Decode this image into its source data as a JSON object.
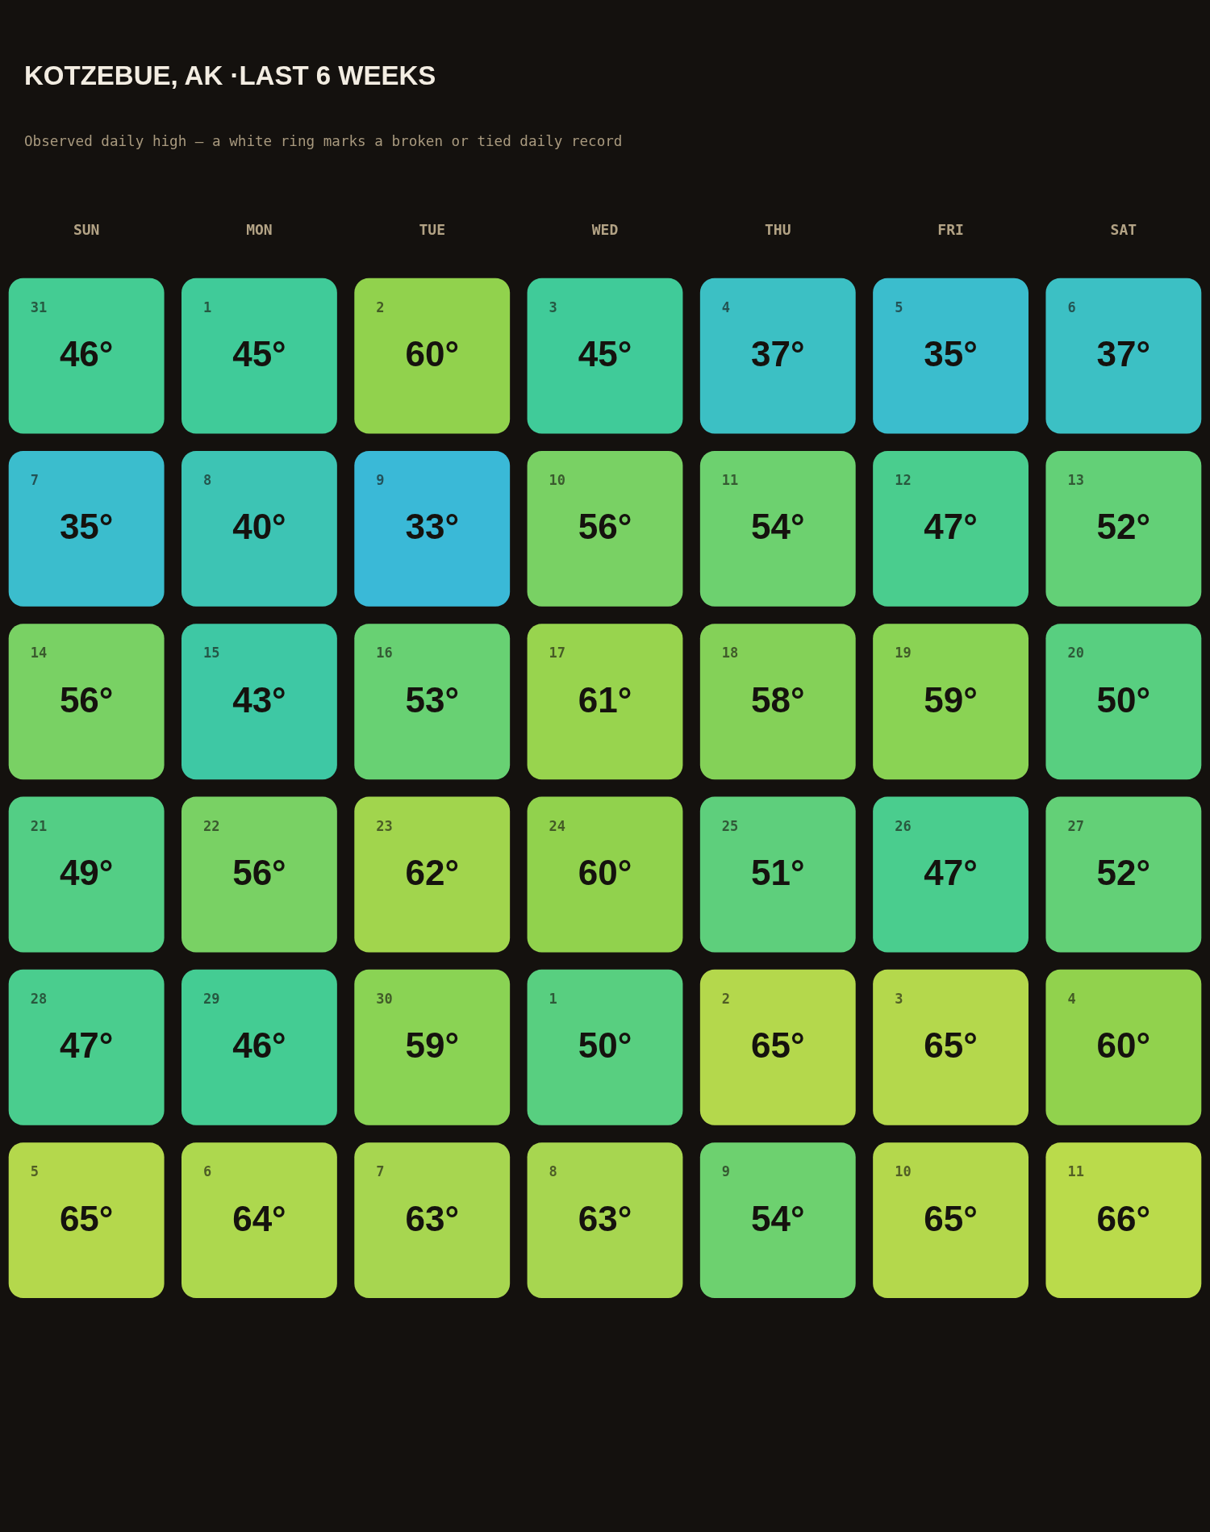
{
  "chart_data": {
    "type": "heatmap",
    "title": "KOTZEBUE, AK ·LAST 6 WEEKS",
    "subtitle": "Observed daily high — a white ring marks a broken or tied daily record",
    "categories": [
      "SUN",
      "MON",
      "TUE",
      "WED",
      "THU",
      "FRI",
      "SAT"
    ],
    "y_categories": [
      null,
      null,
      null,
      null,
      null,
      null
    ],
    "cells": [
      [
        46,
        45,
        60,
        45,
        37,
        35,
        37
      ],
      [
        35,
        40,
        33,
        56,
        54,
        47,
        52
      ],
      [
        56,
        43,
        53,
        61,
        58,
        59,
        50
      ],
      [
        49,
        56,
        62,
        60,
        51,
        47,
        52
      ],
      [
        47,
        46,
        59,
        50,
        65,
        65,
        60
      ],
      [
        65,
        64,
        63,
        63,
        54,
        65,
        66
      ]
    ],
    "cell_labels": [
      [
        "46°",
        "45°",
        "60°",
        "45°",
        "37°",
        "35°",
        "37°"
      ],
      [
        "35°",
        "40°",
        "33°",
        "56°",
        "54°",
        "47°",
        "52°"
      ],
      [
        "56°",
        "43°",
        "53°",
        "61°",
        "58°",
        "59°",
        "50°"
      ],
      [
        "49°",
        "56°",
        "62°",
        "60°",
        "51°",
        "47°",
        "52°"
      ],
      [
        "47°",
        "46°",
        "59°",
        "50°",
        "65°",
        "65°",
        "60°"
      ],
      [
        "65°",
        "64°",
        "63°",
        "63°",
        "54°",
        "65°",
        "66°"
      ]
    ],
    "annotations": [
      "31",
      "1",
      "2",
      "3",
      "4",
      "5",
      "6",
      "7",
      "8",
      "9",
      "10",
      "11",
      "12",
      "13",
      "14",
      "15",
      "16",
      "17",
      "18",
      "19",
      "20",
      "21",
      "22",
      "23",
      "24",
      "25",
      "26",
      "27",
      "28",
      "29",
      "30",
      "1",
      "2",
      "3",
      "4",
      "5",
      "6",
      "7",
      "8",
      "9",
      "10",
      "11"
    ],
    "colors": [
      [
        "#44cc93",
        "#40cb99",
        "#91d24d",
        "#40cb99",
        "#3cc0c4",
        "#3bbdcd",
        "#3cc0c4"
      ],
      [
        "#3bbdcd",
        "#3dc4b4",
        "#3ab9d7",
        "#79d164",
        "#6dd16f",
        "#4acd8e",
        "#63d077"
      ],
      [
        "#79d164",
        "#3ec8a4",
        "#68d173",
        "#98d44e",
        "#84d158",
        "#8ad354",
        "#58cf80"
      ],
      [
        "#53ce85",
        "#79d164",
        "#a1d54d",
        "#91d24d",
        "#5ecf7c",
        "#4acd8e",
        "#63d077"
      ],
      [
        "#4acd8e",
        "#44cc93",
        "#8ad354",
        "#58cf80",
        "#b4d84c",
        "#b4d84c",
        "#91d24d"
      ],
      [
        "#b4d84c",
        "#add84e",
        "#a7d650",
        "#a7d650",
        "#6dd16f",
        "#b4d84c",
        "#badb4b"
      ]
    ]
  }
}
